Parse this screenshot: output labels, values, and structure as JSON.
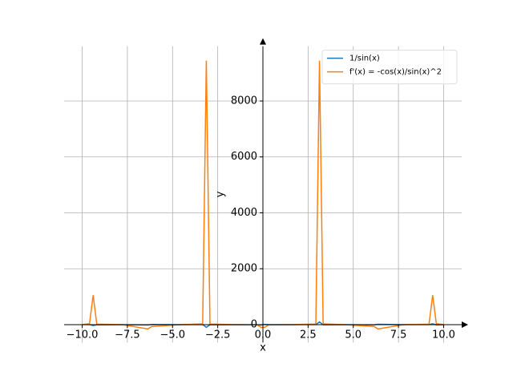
{
  "chart_data": {
    "type": "line",
    "x_label": "x",
    "y_label": "y",
    "x": [
      -10,
      -9.596,
      -9.394,
      -9.192,
      -7.778,
      -6.364,
      -6.162,
      -4.545,
      -3.333,
      -3.131,
      -2.929,
      -1.515,
      -0.303,
      -0.101,
      0.101,
      0.303,
      1.515,
      2.929,
      3.131,
      3.333,
      4.545,
      6.162,
      6.364,
      7.778,
      9.192,
      9.394,
      9.596,
      10
    ],
    "series": [
      {
        "name": "1/sin(x)",
        "color": "#1f77b4",
        "values": [
          1.84,
          5.87,
          -32.5,
          -4.33,
          -1.003,
          -12.45,
          8.24,
          1.014,
          5.25,
          -97.2,
          -4.75,
          -1.002,
          -3.35,
          -9.92,
          9.92,
          3.35,
          1.002,
          4.75,
          97.2,
          -5.25,
          -1.014,
          -8.24,
          12.45,
          1.003,
          4.33,
          32.5,
          -5.87,
          -1.84
        ]
      },
      {
        "name": "f'(x) = -cos(x)/sin(x)^2",
        "color": "#ff7f0e",
        "values": [
          2.83,
          33.9,
          1054,
          18.3,
          -0.076,
          -154.6,
          -67.5,
          0.171,
          27.0,
          9443,
          22.0,
          -0.056,
          -10.7,
          -97.9,
          -97.9,
          -10.7,
          -0.056,
          22.0,
          9443,
          27.0,
          0.171,
          -67.5,
          -154.6,
          -0.076,
          18.3,
          1054,
          33.9,
          2.83
        ]
      }
    ],
    "xlim": [
      -11,
      11
    ],
    "ylim": [
      -637,
      9961
    ],
    "xticks": [
      {
        "value": -10,
        "label": "−10.0"
      },
      {
        "value": -7.5,
        "label": "−7.5"
      },
      {
        "value": -5,
        "label": "−5.0"
      },
      {
        "value": -2.5,
        "label": "−2.5"
      },
      {
        "value": 0,
        "label": "0.0"
      },
      2.5,
      {
        "value": 5,
        "label": "5.0"
      },
      7.5,
      {
        "value": 10,
        "label": "10.0"
      }
    ],
    "yticks": [
      0,
      2000,
      4000,
      6000,
      8000
    ],
    "grid": true,
    "legend": "upper right"
  }
}
